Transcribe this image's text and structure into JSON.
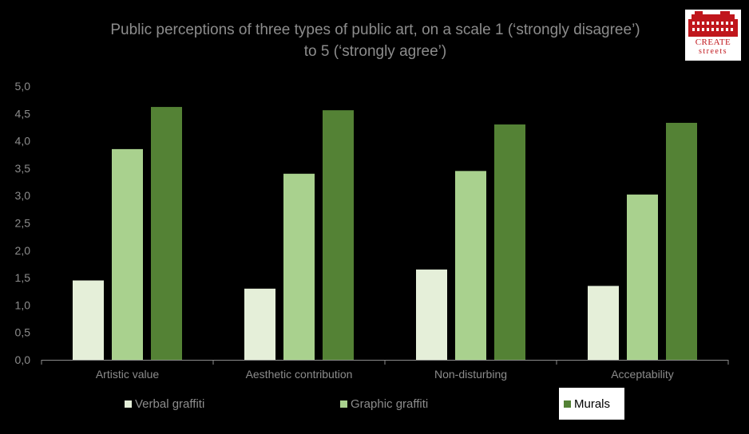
{
  "title_lines": [
    "Public perceptions of three types of public art, on a scale 1 (‘strongly disagree’)",
    "to 5 (‘strongly agree’)"
  ],
  "logo": {
    "line1": "CREATE",
    "line2": "streets",
    "color": "#c0161c"
  },
  "chart_data": {
    "type": "bar",
    "title": "Public perceptions of three types of public art, on a scale 1 (‘strongly disagree’) to 5 (‘strongly agree’)",
    "categories": [
      "Artistic value",
      "Aesthetic contribution",
      "Non-disturbing",
      "Acceptability"
    ],
    "series": [
      {
        "name": "Verbal graffiti",
        "values": [
          1.45,
          1.3,
          1.65,
          1.35
        ],
        "color": "#e5efd9"
      },
      {
        "name": "Graphic graffiti",
        "values": [
          3.85,
          3.4,
          3.45,
          3.02
        ],
        "color": "#a9d18e"
      },
      {
        "name": "Murals",
        "values": [
          4.62,
          4.56,
          4.3,
          4.33
        ],
        "color": "#548235"
      }
    ],
    "ylim": [
      0,
      5
    ],
    "yticks": [
      "0,0",
      "0,5",
      "1,0",
      "1,5",
      "2,0",
      "2,5",
      "3,0",
      "3,5",
      "4,0",
      "4,5",
      "5,0"
    ],
    "xlabel": "",
    "ylabel": "",
    "grid": false,
    "legend_position": "bottom"
  }
}
